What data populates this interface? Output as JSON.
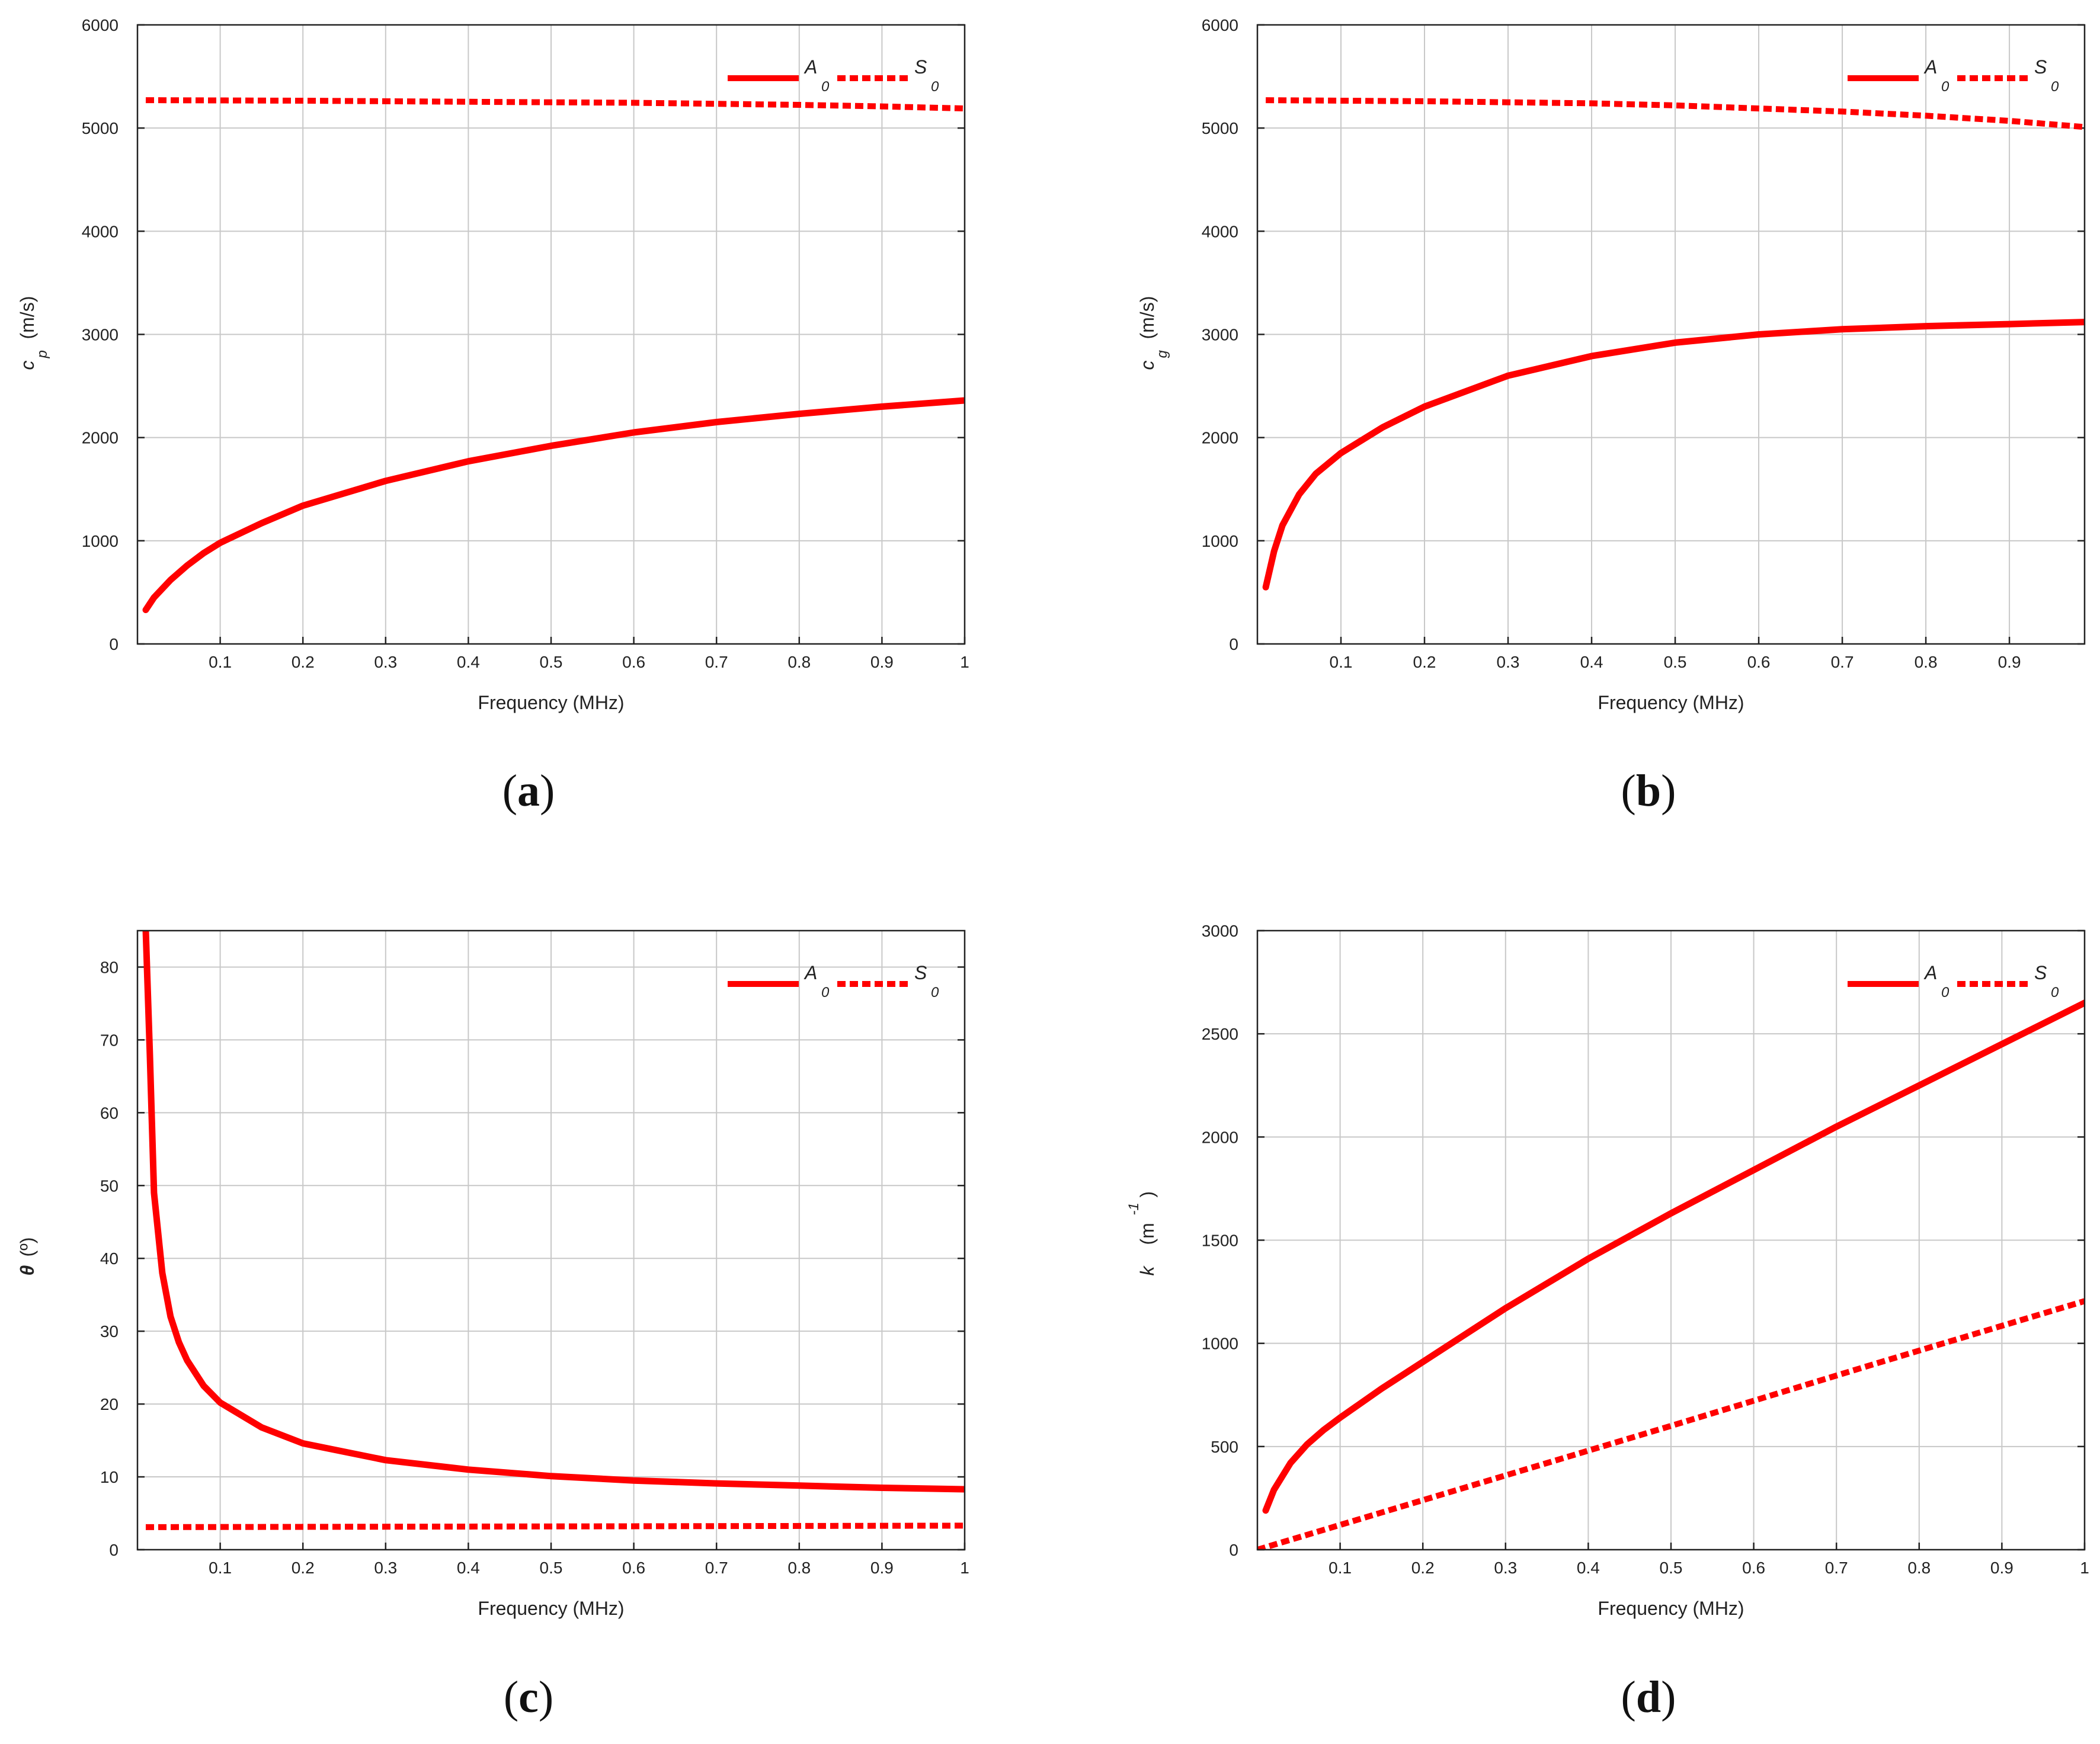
{
  "figure": {
    "colors": {
      "series": "#ff0000",
      "axis": "#222222",
      "grid": "#c8c8c8"
    }
  },
  "chart_data": [
    {
      "type": "line",
      "panel": "(a)",
      "caption_letter": "a",
      "title": "",
      "xlabel": "Frequency (MHz)",
      "ylabel_main": "c",
      "ylabel_sub": "p",
      "ylabel_unit": "(m/s)",
      "xlim": [
        0,
        1
      ],
      "ylim": [
        0,
        6000
      ],
      "x_ticks": [
        0.1,
        0.2,
        0.3,
        0.4,
        0.5,
        0.6,
        0.7,
        0.8,
        0.9,
        1
      ],
      "x_tick_labels": [
        "0.1",
        "0.2",
        "0.3",
        "0.4",
        "0.5",
        "0.6",
        "0.7",
        "0.8",
        "0.9",
        "1"
      ],
      "y_ticks": [
        0,
        1000,
        2000,
        3000,
        4000,
        5000,
        6000
      ],
      "y_tick_labels": [
        "0",
        "1000",
        "2000",
        "3000",
        "4000",
        "5000",
        "6000"
      ],
      "legend_position": "top-right",
      "series": [
        {
          "name": "A",
          "name_sub": "0",
          "style": "solid",
          "x": [
            0.01,
            0.02,
            0.04,
            0.06,
            0.08,
            0.1,
            0.15,
            0.2,
            0.3,
            0.4,
            0.5,
            0.6,
            0.7,
            0.8,
            0.9,
            1.0
          ],
          "y": [
            330,
            450,
            620,
            760,
            880,
            980,
            1170,
            1340,
            1580,
            1770,
            1920,
            2050,
            2150,
            2230,
            2300,
            2360
          ]
        },
        {
          "name": "S",
          "name_sub": "0",
          "style": "dotted",
          "x": [
            0.01,
            0.2,
            0.4,
            0.6,
            0.8,
            0.9,
            1.0
          ],
          "y": [
            5270,
            5265,
            5255,
            5245,
            5225,
            5210,
            5190
          ]
        }
      ]
    },
    {
      "type": "line",
      "panel": "(b)",
      "caption_letter": "b",
      "title": "",
      "xlabel": "Frequency (MHz)",
      "ylabel_main": "c",
      "ylabel_sub": "g",
      "ylabel_unit": "(m/s)",
      "xlim": [
        0,
        0.99
      ],
      "ylim": [
        0,
        6000
      ],
      "x_ticks": [
        0.1,
        0.2,
        0.3,
        0.4,
        0.5,
        0.6,
        0.7,
        0.8,
        0.9
      ],
      "x_tick_labels": [
        "0.1",
        "0.2",
        "0.3",
        "0.4",
        "0.5",
        "0.6",
        "0.7",
        "0.8",
        "0.9"
      ],
      "y_ticks": [
        0,
        1000,
        2000,
        3000,
        4000,
        5000,
        6000
      ],
      "y_tick_labels": [
        "0",
        "1000",
        "2000",
        "3000",
        "4000",
        "5000",
        "6000"
      ],
      "legend_position": "top-right",
      "series": [
        {
          "name": "A",
          "name_sub": "0",
          "style": "solid",
          "x": [
            0.01,
            0.02,
            0.03,
            0.05,
            0.07,
            0.1,
            0.15,
            0.2,
            0.3,
            0.4,
            0.5,
            0.6,
            0.7,
            0.8,
            0.9,
            0.99
          ],
          "y": [
            550,
            900,
            1150,
            1450,
            1650,
            1850,
            2100,
            2300,
            2600,
            2790,
            2920,
            3000,
            3050,
            3080,
            3100,
            3120
          ]
        },
        {
          "name": "S",
          "name_sub": "0",
          "style": "dotted",
          "x": [
            0.01,
            0.2,
            0.4,
            0.5,
            0.6,
            0.7,
            0.8,
            0.9,
            0.99
          ],
          "y": [
            5270,
            5260,
            5240,
            5220,
            5190,
            5160,
            5120,
            5070,
            5010
          ]
        }
      ]
    },
    {
      "type": "line",
      "panel": "(c)",
      "caption_letter": "c",
      "title": "",
      "xlabel": "Frequency (MHz)",
      "ylabel_main": "θ",
      "ylabel_sub": "",
      "ylabel_unit": "(º)",
      "xlim": [
        0,
        1
      ],
      "ylim": [
        0,
        85
      ],
      "x_ticks": [
        0.1,
        0.2,
        0.3,
        0.4,
        0.5,
        0.6,
        0.7,
        0.8,
        0.9,
        1
      ],
      "x_tick_labels": [
        "0.1",
        "0.2",
        "0.3",
        "0.4",
        "0.5",
        "0.6",
        "0.7",
        "0.8",
        "0.9",
        "1"
      ],
      "y_ticks": [
        0,
        10,
        20,
        30,
        40,
        50,
        60,
        70,
        80
      ],
      "y_tick_labels": [
        "0",
        "10",
        "20",
        "30",
        "40",
        "50",
        "60",
        "70",
        "80"
      ],
      "legend_position": "top-right",
      "series": [
        {
          "name": "A",
          "name_sub": "0",
          "style": "solid",
          "x": [
            0.01,
            0.015,
            0.02,
            0.03,
            0.04,
            0.05,
            0.06,
            0.08,
            0.1,
            0.15,
            0.2,
            0.3,
            0.4,
            0.5,
            0.6,
            0.7,
            0.8,
            0.9,
            1.0
          ],
          "y": [
            85,
            68,
            49,
            38,
            32,
            28.5,
            26,
            22.5,
            20.2,
            16.8,
            14.6,
            12.3,
            11,
            10.1,
            9.5,
            9.1,
            8.8,
            8.5,
            8.3
          ]
        },
        {
          "name": "S",
          "name_sub": "0",
          "style": "dotted",
          "x": [
            0.01,
            0.5,
            1.0
          ],
          "y": [
            3.1,
            3.2,
            3.3
          ]
        }
      ]
    },
    {
      "type": "line",
      "panel": "(d)",
      "caption_letter": "d",
      "title": "",
      "xlabel": "Frequency (MHz)",
      "ylabel_main": "k",
      "ylabel_sub": "",
      "ylabel_unit": "(m",
      "ylabel_sup": "-1",
      "ylabel_close": ")",
      "xlim": [
        0,
        1
      ],
      "ylim": [
        0,
        3000
      ],
      "x_ticks": [
        0.1,
        0.2,
        0.3,
        0.4,
        0.5,
        0.6,
        0.7,
        0.8,
        0.9,
        1
      ],
      "x_tick_labels": [
        "0.1",
        "0.2",
        "0.3",
        "0.4",
        "0.5",
        "0.6",
        "0.7",
        "0.8",
        "0.9",
        "1"
      ],
      "y_ticks": [
        0,
        500,
        1000,
        1500,
        2000,
        2500,
        3000
      ],
      "y_tick_labels": [
        "0",
        "500",
        "1000",
        "1500",
        "2000",
        "2500",
        "3000"
      ],
      "legend_position": "top-right",
      "series": [
        {
          "name": "A",
          "name_sub": "0",
          "style": "solid",
          "x": [
            0.01,
            0.02,
            0.04,
            0.06,
            0.08,
            0.1,
            0.15,
            0.2,
            0.3,
            0.4,
            0.5,
            0.6,
            0.7,
            0.8,
            0.9,
            1.0
          ],
          "y": [
            190,
            290,
            420,
            510,
            580,
            640,
            780,
            910,
            1170,
            1410,
            1630,
            1840,
            2050,
            2250,
            2450,
            2650
          ]
        },
        {
          "name": "S",
          "name_sub": "0",
          "style": "dotted",
          "x": [
            0.0,
            0.25,
            0.5,
            0.75,
            1.0
          ],
          "y": [
            0,
            300,
            600,
            905,
            1205
          ]
        }
      ]
    }
  ]
}
